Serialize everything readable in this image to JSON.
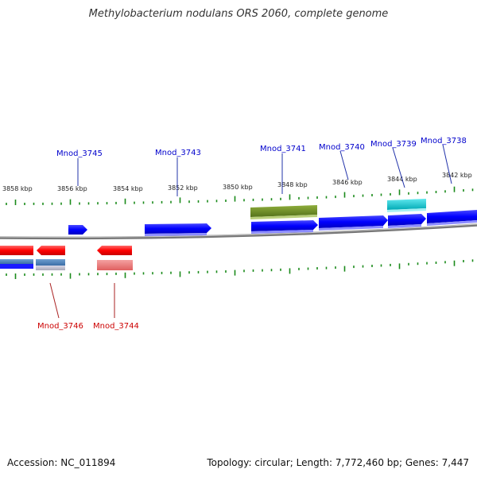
{
  "title": "Methylobacterium nodulans ORS 2060, complete genome",
  "footer": {
    "accession": "Accession: NC_011894",
    "summary": "Topology: circular; Length: 7,772,460 bp; Genes: 7,447"
  },
  "colors": {
    "forward_gene": "#0000ff",
    "reverse_gene": "#ff0000",
    "forward_label": "#0000cc",
    "reverse_label": "#cc0000",
    "tick": "#1a8a1a",
    "backbone": "#888888",
    "olive_feature": "#6b8e23",
    "cyan_feature": "#00c8d0"
  },
  "ruler_labels": [
    "3858 kbp",
    "3856 kbp",
    "3854 kbp",
    "3852 kbp",
    "3850 kbp",
    "3848 kbp",
    "3846 kbp",
    "3844 kbp",
    "3842 kbp"
  ],
  "top_gene_labels": [
    "Mnod_3745",
    "Mnod_3743",
    "Mnod_3741",
    "Mnod_3740",
    "Mnod_3739",
    "Mnod_3738"
  ],
  "bottom_gene_labels": [
    "Mnod_3746",
    "Mnod_3744"
  ]
}
